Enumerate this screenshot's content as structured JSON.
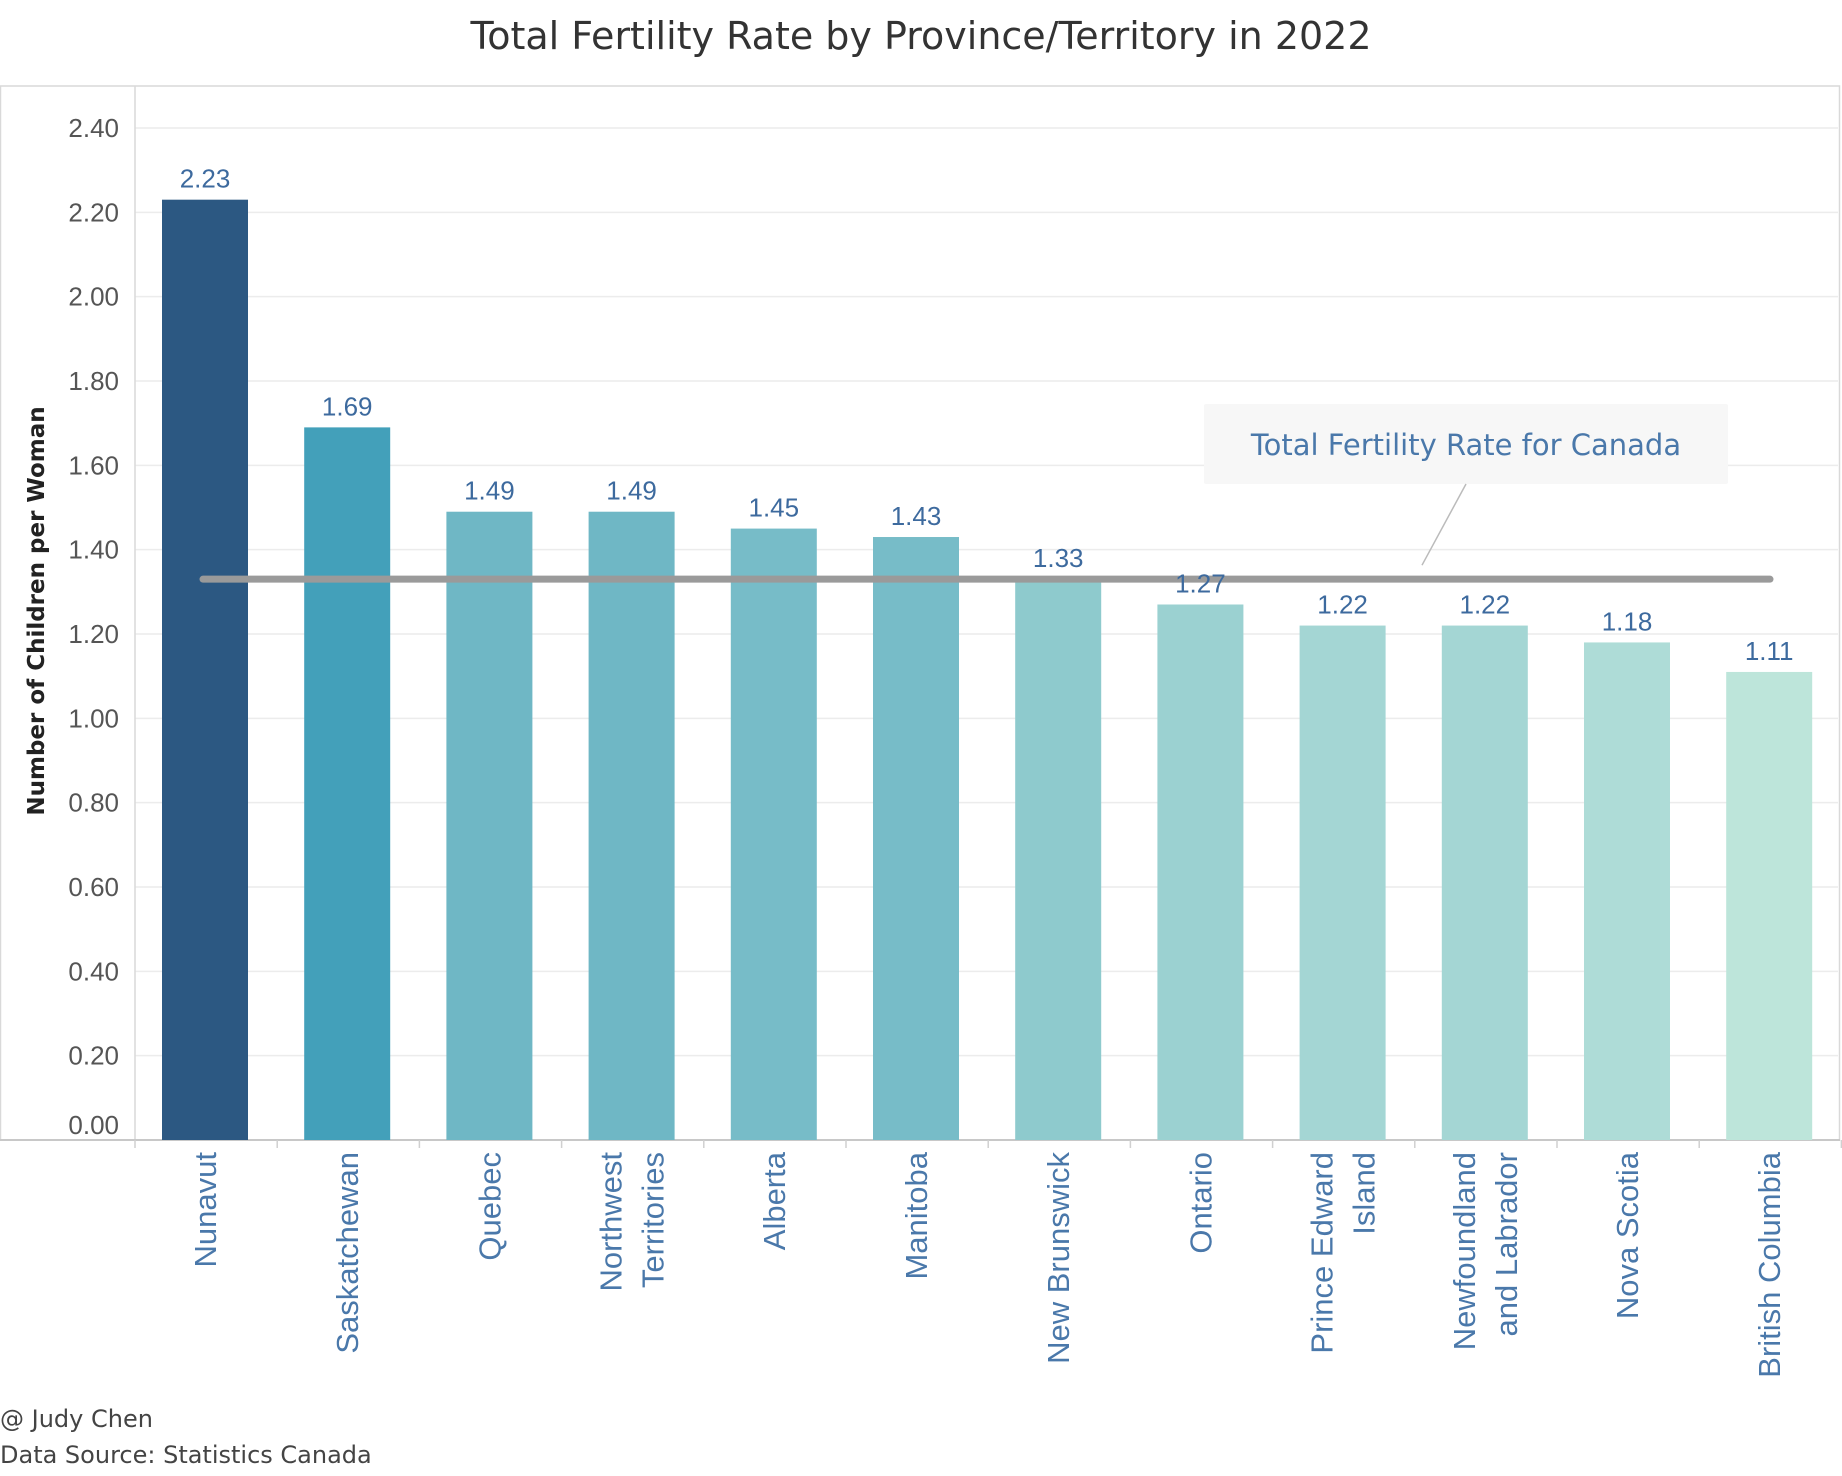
{
  "chart_data": {
    "type": "bar",
    "title": "Total Fertility Rate by Province/Territory in 2022",
    "ylabel": "Number of Children per Woman",
    "xlabel": "",
    "ylim": [
      0,
      2.4
    ],
    "yticks": [
      "0.00",
      "0.20",
      "0.40",
      "0.60",
      "0.80",
      "1.00",
      "1.20",
      "1.40",
      "1.60",
      "1.80",
      "2.00",
      "2.20",
      "2.40"
    ],
    "grid": true,
    "categories": [
      [
        "Nunavut"
      ],
      [
        "Saskatchewan"
      ],
      [
        "Quebec"
      ],
      [
        "Northwest",
        "Territories"
      ],
      [
        "Alberta"
      ],
      [
        "Manitoba"
      ],
      [
        "New Brunswick"
      ],
      [
        "Ontario"
      ],
      [
        "Prince Edward",
        "Island"
      ],
      [
        "Newfoundland",
        "and Labrador"
      ],
      [
        "Nova Scotia"
      ],
      [
        "British Columbia"
      ]
    ],
    "values": [
      2.23,
      1.69,
      1.49,
      1.49,
      1.45,
      1.43,
      1.33,
      1.27,
      1.22,
      1.22,
      1.18,
      1.11
    ],
    "value_labels": [
      "2.23",
      "1.69",
      "1.49",
      "1.49",
      "1.45",
      "1.43",
      "1.33",
      "1.27",
      "1.22",
      "1.22",
      "1.18",
      "1.11"
    ],
    "bar_colors": [
      "#2c5882",
      "#43a0ba",
      "#6fb7c5",
      "#6fb7c5",
      "#77bcc8",
      "#77bcc8",
      "#8ecacd",
      "#9bd1d1",
      "#a4d6d4",
      "#a4d6d4",
      "#aedcd7",
      "#bde5da"
    ],
    "reference_line": {
      "value": 1.33,
      "label": "Total Fertility Rate for Canada",
      "color": "#9a9a9a"
    }
  },
  "footer": {
    "credit": "@ Judy Chen",
    "source": "Data Source: Statistics Canada"
  }
}
